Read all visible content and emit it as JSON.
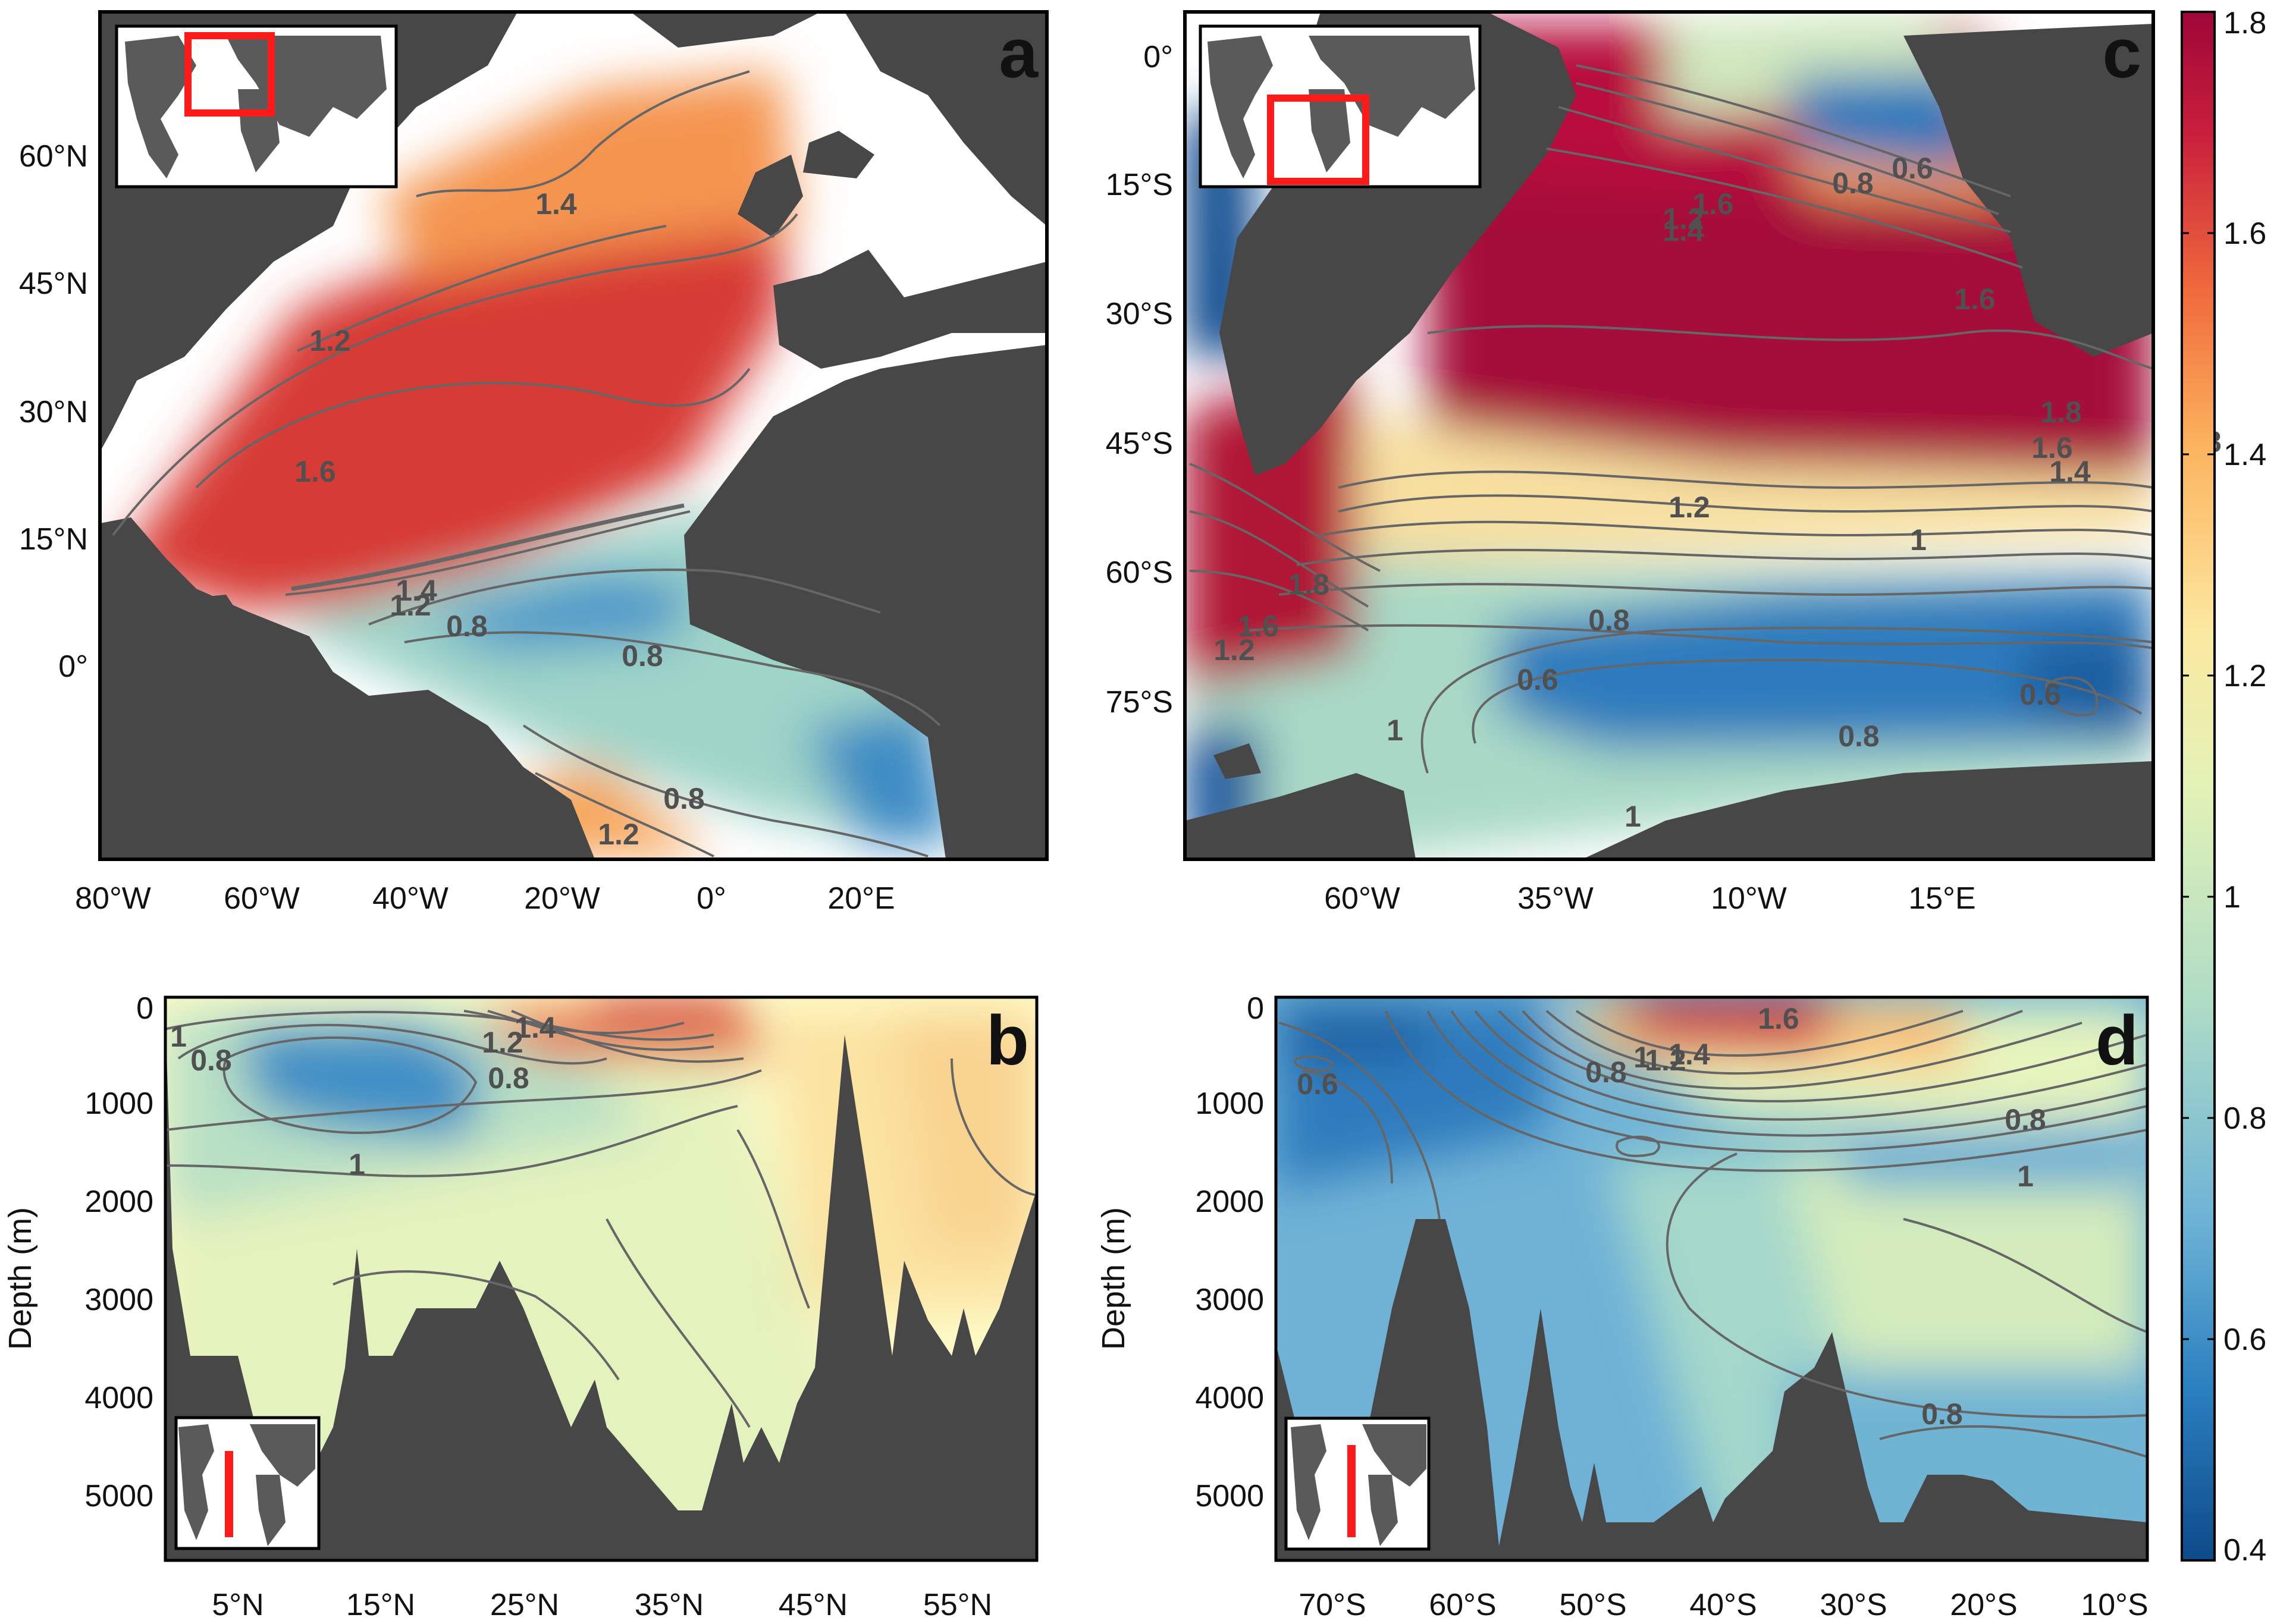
{
  "colors": {
    "land": "#474747",
    "frame": "#000000",
    "contour": "#666666",
    "inset_highlight": "#ff1a1a",
    "colormap": [
      "#0d4a8a",
      "#2a7fbf",
      "#6db3d6",
      "#aedcc6",
      "#e3f2b6",
      "#fbe9a0",
      "#fcb35e",
      "#f06a3c",
      "#c9203c",
      "#a0063a"
    ]
  },
  "chart_data": [
    {
      "id": "a",
      "type": "heatmap",
      "panel_label": "a",
      "x_ticks": [
        "80°W",
        "60°W",
        "40°W",
        "20°W",
        "0°",
        "20°E"
      ],
      "y_ticks": [
        "60°N",
        "45°N",
        "30°N",
        "15°N",
        "0°"
      ],
      "contour_labels": [
        "1.4",
        "1.2",
        "1.6",
        "1.4",
        "1.2",
        "0.8",
        "0.8",
        "0.8",
        "1.2"
      ]
    },
    {
      "id": "b",
      "type": "heatmap",
      "panel_label": "b",
      "ylabel": "Depth (m)",
      "x_ticks": [
        "5°N",
        "15°N",
        "25°N",
        "35°N",
        "45°N",
        "55°N"
      ],
      "y_ticks": [
        "0",
        "1000",
        "2000",
        "3000",
        "4000",
        "5000"
      ],
      "contour_labels": [
        "1",
        "0.8",
        "1.2",
        "1.4",
        "0.8",
        "1"
      ]
    },
    {
      "id": "c",
      "type": "heatmap",
      "panel_label": "c",
      "x_ticks": [
        "60°W",
        "35°W",
        "10°W",
        "15°E"
      ],
      "y_ticks": [
        "0°",
        "15°S",
        "30°S",
        "45°S",
        "60°S",
        "75°S"
      ],
      "contour_labels": [
        "0.8",
        "0.6",
        "1.2",
        "1.4",
        "1.6",
        "1.6",
        "1.8",
        "1.6",
        "1.8",
        "1.4",
        "1.2",
        "1",
        "0.8",
        "0.6",
        "0.6",
        "0.8",
        "1",
        "1.6",
        "1.8",
        "1.2",
        "1"
      ]
    },
    {
      "id": "d",
      "type": "heatmap",
      "panel_label": "d",
      "ylabel": "Depth (m)",
      "x_ticks": [
        "70°S",
        "60°S",
        "50°S",
        "40°S",
        "30°S",
        "20°S",
        "10°S"
      ],
      "y_ticks": [
        "0",
        "1000",
        "2000",
        "3000",
        "4000",
        "5000"
      ],
      "contour_labels": [
        "1.6",
        "0.6",
        "0.8",
        "1",
        "1.2",
        "1.4",
        "0.8",
        "1",
        "0.8"
      ]
    }
  ],
  "colorbar": {
    "ticks": [
      "1.8",
      "1.6",
      "1.4",
      "1.2",
      "1",
      "0.8",
      "0.6",
      "0.4"
    ],
    "range": [
      0.4,
      1.8
    ]
  }
}
